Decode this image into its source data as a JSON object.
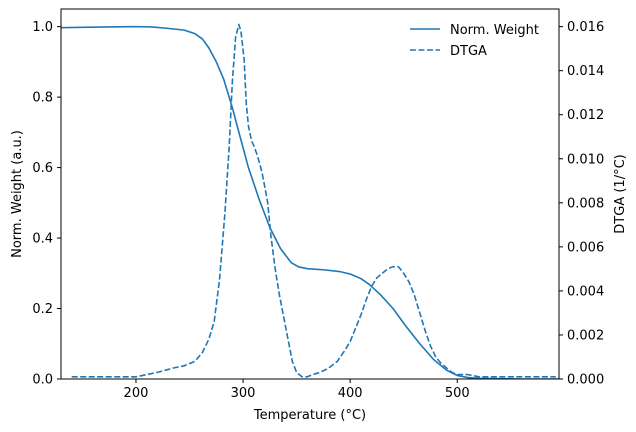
{
  "chart_data": {
    "type": "line",
    "title": "",
    "xlabel": "Temperature (°C)",
    "ylabel": "Norm. Weight (a.u.)",
    "y2label": "DTGA (1/°C)",
    "xlim": [
      130,
      595
    ],
    "ylim": [
      0,
      1.05
    ],
    "y2lim": [
      0,
      0.0168
    ],
    "x_ticks": [
      200,
      300,
      400,
      500
    ],
    "x_tick_labels": [
      "200",
      "300",
      "400",
      "500"
    ],
    "y_ticks": [
      0.0,
      0.2,
      0.4,
      0.6,
      0.8,
      1.0
    ],
    "y_tick_labels": [
      "0.0",
      "0.2",
      "0.4",
      "0.6",
      "0.8",
      "1.0"
    ],
    "y2_ticks": [
      0,
      0.002,
      0.004,
      0.006,
      0.008,
      0.01,
      0.012,
      0.014,
      0.016
    ],
    "y2_tick_labels": [
      "0.000",
      "0.002",
      "0.004",
      "0.006",
      "0.008",
      "0.010",
      "0.012",
      "0.014",
      "0.016"
    ],
    "grid": false,
    "legend_position": "top-right",
    "color": "#1f77b4",
    "series": [
      {
        "name": "Norm. Weight",
        "axis": "left",
        "style": "solid",
        "x": [
          130,
          150,
          175,
          200,
          215,
          230,
          245,
          255,
          262,
          268,
          275,
          282,
          290,
          297,
          305,
          315,
          325,
          335,
          345,
          352,
          360,
          375,
          390,
          400,
          410,
          418,
          428,
          440,
          452,
          465,
          478,
          490,
          500,
          510,
          520,
          540,
          560,
          595
        ],
        "y": [
          0.997,
          0.998,
          0.999,
          1.0,
          0.999,
          0.995,
          0.99,
          0.98,
          0.965,
          0.94,
          0.9,
          0.85,
          0.77,
          0.69,
          0.6,
          0.51,
          0.43,
          0.37,
          0.33,
          0.318,
          0.313,
          0.31,
          0.305,
          0.298,
          0.285,
          0.268,
          0.24,
          0.2,
          0.15,
          0.1,
          0.055,
          0.025,
          0.01,
          0.004,
          0.002,
          0.001,
          0.0,
          0.0
        ]
      },
      {
        "name": "DTGA",
        "axis": "right",
        "style": "dashed",
        "x": [
          140,
          160,
          180,
          200,
          220,
          235,
          245,
          255,
          262,
          268,
          273,
          278,
          283,
          287,
          290,
          293,
          296,
          298,
          301,
          303,
          305,
          308,
          310,
          313,
          316,
          318,
          320,
          323,
          326,
          330,
          334,
          338,
          342,
          346,
          350,
          355,
          360,
          365,
          372,
          380,
          388,
          395,
          400,
          405,
          410,
          415,
          420,
          425,
          430,
          435,
          440,
          445,
          450,
          455,
          460,
          465,
          470,
          475,
          480,
          485,
          490,
          495,
          500,
          510,
          520,
          540,
          560,
          580,
          592
        ],
        "y": [
          0.0001,
          0.0001,
          0.0001,
          0.0001,
          0.0003,
          0.0005,
          0.0006,
          0.0008,
          0.0012,
          0.0018,
          0.0026,
          0.0045,
          0.0075,
          0.0105,
          0.0135,
          0.0155,
          0.0161,
          0.0158,
          0.0145,
          0.0125,
          0.0115,
          0.0108,
          0.0106,
          0.0102,
          0.0097,
          0.0093,
          0.0088,
          0.008,
          0.0065,
          0.005,
          0.0038,
          0.0028,
          0.0018,
          0.0008,
          0.0003,
          0.0001,
          0.0001,
          0.0002,
          0.0003,
          0.0005,
          0.0008,
          0.0013,
          0.0017,
          0.0023,
          0.0029,
          0.0036,
          0.0042,
          0.0046,
          0.0048,
          0.005,
          0.0051,
          0.0051,
          0.0048,
          0.0044,
          0.0038,
          0.003,
          0.0022,
          0.0015,
          0.001,
          0.0007,
          0.0005,
          0.0003,
          0.0002,
          0.0002,
          0.0001,
          0.0001,
          0.0001,
          0.0001,
          0.0001
        ]
      }
    ]
  }
}
